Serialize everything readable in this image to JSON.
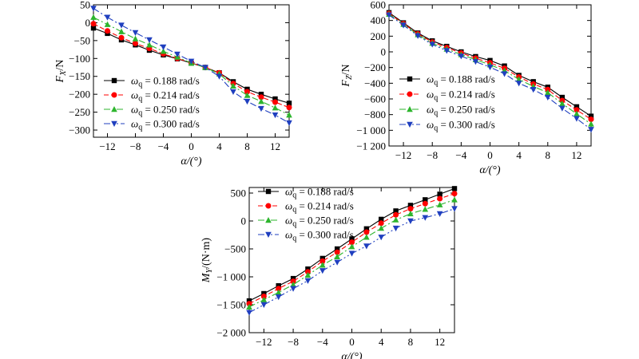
{
  "chart_data": [
    {
      "id": "fx",
      "type": "line",
      "xlabel": "α/(°)",
      "ylabel_var": "F",
      "ylabel_sub": "X",
      "ylabel_unit": "/N",
      "xlim": [
        -14,
        14
      ],
      "ylim": [
        -320,
        50
      ],
      "xticks": [
        -12,
        -8,
        -4,
        0,
        4,
        8,
        12
      ],
      "yticks": [
        50,
        0,
        -50,
        -100,
        -150,
        -200,
        -250,
        -300
      ],
      "ytick_labels": [
        "50",
        "0",
        "−50",
        "−100",
        "−150",
        "−200",
        "−250",
        "−300"
      ],
      "legend_position": "lower-left",
      "x": [
        -14,
        -12,
        -10,
        -8,
        -6,
        -4,
        -2,
        0,
        2,
        4,
        6,
        8,
        10,
        12,
        14
      ],
      "series": [
        {
          "name": "ω_q = 0.188 rad/s",
          "values": [
            -15,
            -30,
            -48,
            -62,
            -77,
            -90,
            -101,
            -113,
            -125,
            -140,
            -165,
            -186,
            -200,
            -213,
            -225
          ]
        },
        {
          "name": "ω_q = 0.214 rad/s",
          "values": [
            -3,
            -23,
            -42,
            -58,
            -72,
            -87,
            -100,
            -112,
            -125,
            -140,
            -170,
            -193,
            -208,
            -222,
            -237
          ]
        },
        {
          "name": "ω_q = 0.250 rad/s",
          "values": [
            15,
            -5,
            -25,
            -45,
            -62,
            -80,
            -96,
            -113,
            -125,
            -143,
            -177,
            -203,
            -220,
            -238,
            -258
          ]
        },
        {
          "name": "ω_q = 0.300 rad/s",
          "values": [
            40,
            15,
            -7,
            -28,
            -48,
            -68,
            -88,
            -108,
            -125,
            -150,
            -193,
            -220,
            -240,
            -258,
            -280
          ]
        }
      ]
    },
    {
      "id": "fz",
      "type": "line",
      "xlabel": "α/(°)",
      "ylabel_var": "F",
      "ylabel_sub": "Z",
      "ylabel_unit": "/N",
      "xlim": [
        -14,
        14
      ],
      "ylim": [
        -1200,
        600
      ],
      "xticks": [
        -12,
        -8,
        -4,
        0,
        4,
        8,
        12
      ],
      "yticks": [
        600,
        400,
        200,
        0,
        -200,
        -400,
        -600,
        -800,
        -1000,
        -1200
      ],
      "ytick_labels": [
        "600",
        "400",
        "200",
        "0",
        "−200",
        "−400",
        "−600",
        "−800",
        "−1 000",
        "−1 200"
      ],
      "legend_position": "lower-left",
      "x": [
        -14,
        -12,
        -10,
        -8,
        -6,
        -4,
        -2,
        0,
        2,
        4,
        6,
        8,
        10,
        12,
        14
      ],
      "series": [
        {
          "name": "ω_q = 0.188 rad/s",
          "values": [
            500,
            370,
            240,
            140,
            70,
            0,
            -60,
            -110,
            -180,
            -300,
            -380,
            -450,
            -580,
            -700,
            -820
          ]
        },
        {
          "name": "ω_q = 0.214 rad/s",
          "values": [
            490,
            360,
            230,
            125,
            55,
            -15,
            -80,
            -140,
            -210,
            -320,
            -410,
            -480,
            -620,
            -740,
            -860
          ]
        },
        {
          "name": "ω_q = 0.250 rad/s",
          "values": [
            480,
            350,
            220,
            110,
            35,
            -35,
            -100,
            -165,
            -240,
            -350,
            -440,
            -520,
            -660,
            -790,
            -920
          ]
        },
        {
          "name": "ω_q = 0.300 rad/s",
          "values": [
            470,
            340,
            205,
            95,
            15,
            -55,
            -125,
            -195,
            -280,
            -400,
            -480,
            -580,
            -720,
            -850,
            -990
          ]
        }
      ]
    },
    {
      "id": "my",
      "type": "line",
      "xlabel": "α/(°)",
      "ylabel_var": "M",
      "ylabel_sub": "Y",
      "ylabel_unit": "/(N·m)",
      "xlim": [
        -14,
        14
      ],
      "ylim": [
        -2000,
        600
      ],
      "xticks": [
        -12,
        -8,
        -4,
        0,
        4,
        8,
        12
      ],
      "yticks": [
        500,
        0,
        -500,
        -1000,
        -1500,
        -2000
      ],
      "ytick_labels": [
        "500",
        "0",
        "−500",
        "−1 000",
        "−1 500",
        "−2 000"
      ],
      "legend_position": "upper-left",
      "x": [
        -14,
        -12,
        -10,
        -8,
        -6,
        -4,
        -2,
        0,
        2,
        4,
        6,
        8,
        10,
        12,
        14
      ],
      "series": [
        {
          "name": "ω_q = 0.188 rad/s",
          "values": [
            -1430,
            -1300,
            -1160,
            -1030,
            -860,
            -670,
            -500,
            -320,
            -140,
            30,
            180,
            280,
            380,
            480,
            580
          ]
        },
        {
          "name": "ω_q = 0.214 rad/s",
          "values": [
            -1480,
            -1350,
            -1210,
            -1080,
            -910,
            -720,
            -560,
            -380,
            -200,
            -40,
            110,
            220,
            310,
            400,
            490
          ]
        },
        {
          "name": "ω_q = 0.250 rad/s",
          "values": [
            -1540,
            -1410,
            -1280,
            -1140,
            -970,
            -790,
            -640,
            -460,
            -290,
            -130,
            20,
            130,
            210,
            290,
            380
          ]
        },
        {
          "name": "ω_q = 0.300 rad/s",
          "values": [
            -1640,
            -1500,
            -1360,
            -1210,
            -1070,
            -890,
            -740,
            -580,
            -450,
            -290,
            -130,
            0,
            60,
            130,
            220
          ]
        }
      ]
    }
  ],
  "styles": [
    {
      "color": "#000000",
      "marker": "square",
      "dash": ""
    },
    {
      "color": "#ff0000",
      "marker": "circle",
      "dash": "6,3"
    },
    {
      "color": "#2db52d",
      "marker": "triangle-up",
      "dash": "8,3,2,3"
    },
    {
      "color": "#1f3fbf",
      "marker": "triangle-down",
      "dash": "8,3,2,3,2,3"
    }
  ]
}
